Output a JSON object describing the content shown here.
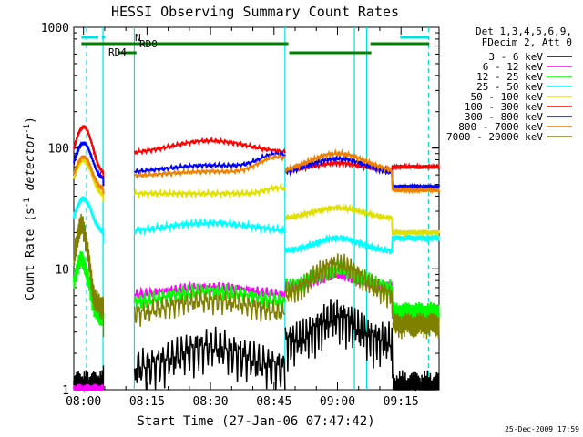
{
  "chart_data": {
    "type": "line",
    "title": "HESSI Observing Summary Count Rates",
    "xlabel": "Start Time (27-Jan-06 07:47:42)",
    "ylabel_main": "Count Rate (s",
    "ylabel_sup1": "-1",
    "ylabel_mid": " detector",
    "ylabel_sup2": "-1",
    "ylabel_end": ")",
    "y_scale": "log",
    "ylim": [
      1,
      1000
    ],
    "xlim_minutes": [
      7.7,
      94
    ],
    "x_ticks": [
      "08:00",
      "08:15",
      "08:30",
      "08:45",
      "09:00",
      "09:15"
    ],
    "y_ticks": [
      "1",
      "10",
      "100",
      "1000"
    ],
    "legend_header": [
      "Det 1,3,4,5,6,9,",
      "FDecim 2, Att 0"
    ],
    "legend_position": "top-right, outside plot",
    "series": [
      {
        "name": "3 - 6 keV",
        "color": "#000000"
      },
      {
        "name": "6 - 12 keV",
        "color": "#ff00ff"
      },
      {
        "name": "12 - 25 keV",
        "color": "#00ff00"
      },
      {
        "name": "25 - 50 keV",
        "color": "#00ffff"
      },
      {
        "name": "50 - 100 keV",
        "color": "#e0e000"
      },
      {
        "name": "100 - 300 keV",
        "color": "#ff0000"
      },
      {
        "name": "300 - 800 keV",
        "color": "#0000ff"
      },
      {
        "name": "800 - 7000 keV",
        "color": "#f08000"
      },
      {
        "name": "7000 - 20000 keV",
        "color": "#808000"
      }
    ],
    "flag_labels": {
      "n": "N",
      "rd0": "RD0",
      "rd4": "RD4"
    },
    "footer_date": "25-Dec-2009 17:59"
  }
}
